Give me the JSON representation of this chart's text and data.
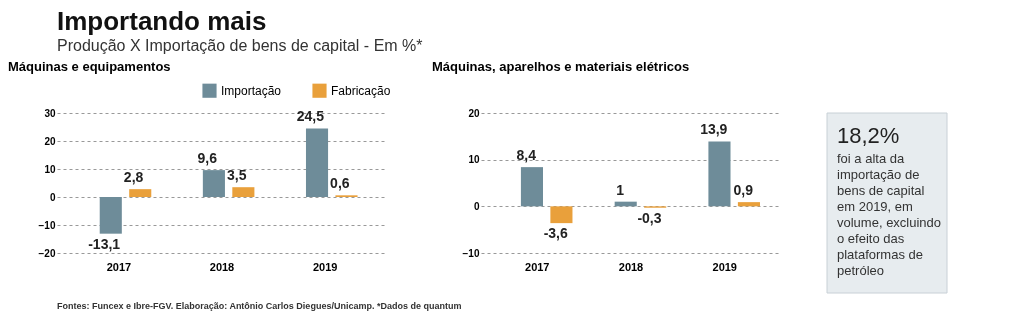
{
  "chart_data": [
    {
      "type": "other",
      "title": "Importando mais",
      "subtitle": "Produção X Importação de bens de capital - Em %*",
      "annotations": [
        "Fontes: Funcex e Ibre-FGV. Elaboração: Antônio Carlos Diegues/Unicamp. *Dados de quantum"
      ]
    },
    {
      "type": "bar",
      "title": "Máquinas e equipamentos",
      "categories": [
        "2017",
        "2018",
        "2019"
      ],
      "series": [
        {
          "name": "Importação",
          "color": "#6e8c99",
          "values": [
            -13.1,
            9.6,
            24.5
          ],
          "value_labels": [
            "-13,1",
            "9,6",
            "24,5"
          ]
        },
        {
          "name": "Fabricação",
          "color": "#e9a03b",
          "values": [
            2.8,
            3.5,
            0.6
          ],
          "value_labels": [
            "2,8",
            "3,5",
            "0,6"
          ]
        }
      ],
      "ylim": [
        -20,
        30
      ],
      "yticks": [
        -20,
        -10,
        0,
        10,
        20,
        30
      ],
      "grid": "y",
      "legend": "top right"
    },
    {
      "type": "bar",
      "title": "Máquinas, aparelhos e materiais elétricos",
      "categories": [
        "2017",
        "2018",
        "2019"
      ],
      "series": [
        {
          "name": "Importação",
          "color": "#6e8c99",
          "values": [
            8.4,
            1,
            13.9
          ],
          "value_labels": [
            "8,4",
            "1",
            "13,9"
          ]
        },
        {
          "name": "Fabricação",
          "color": "#e9a03b",
          "values": [
            -3.6,
            -0.3,
            0.9
          ],
          "value_labels": [
            "-3,6",
            "-0,3",
            "0,9"
          ]
        }
      ],
      "ylim": [
        -10,
        20
      ],
      "yticks": [
        -10,
        0,
        10,
        20
      ],
      "grid": "y",
      "legend": "top right"
    },
    {
      "type": "other",
      "title": "18,2%",
      "annotations": [
        "foi a alta da importação de bens de capital em 2019, em volume, excluindo o efeito das plataformas de petróleo"
      ]
    }
  ]
}
